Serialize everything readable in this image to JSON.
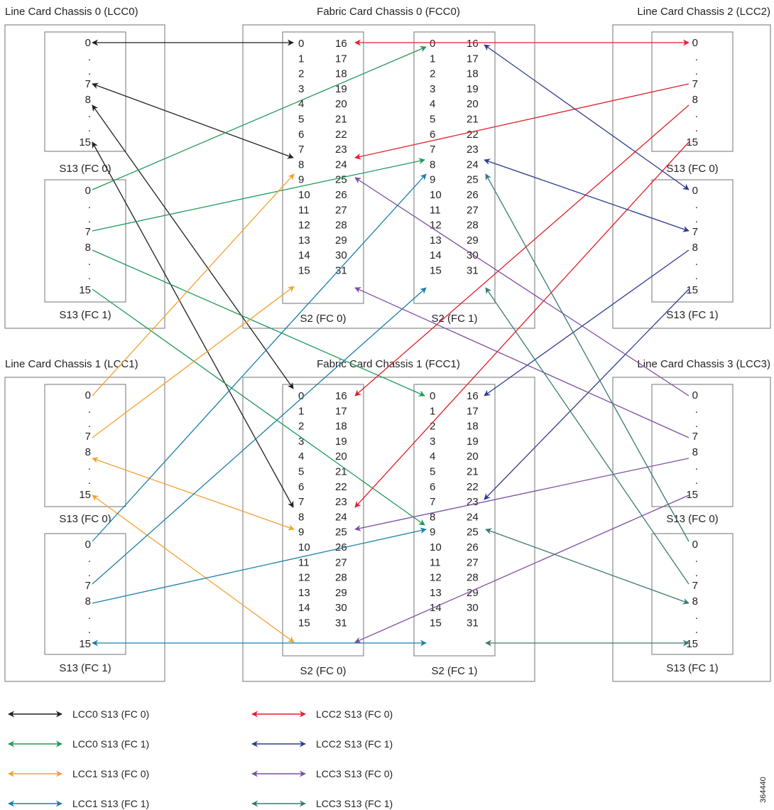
{
  "titles": {
    "lcc0": "Line Card Chassis 0 (LCC0)",
    "fcc0": "Fabric Card Chassis 0 (FCC0)",
    "lcc2": "Line Card Chassis 2 (LCC2)",
    "lcc1": "Line Card Chassis 1 (LCC1)",
    "fcc1": "Fabric Card Chassis 1 (FCC1)",
    "lcc3": "Line Card Chassis 3 (LCC3)"
  },
  "lc_labels": {
    "fc0": "S13 (FC 0)",
    "fc1": "S13 (FC 1)"
  },
  "fabric_labels": {
    "fc0": "S2 (FC 0)",
    "fc1": "S2 (FC 1)"
  },
  "lc_ports": [
    "0",
    ".",
    ".",
    "7",
    "8",
    ".",
    ".",
    "15"
  ],
  "fabric_left": [
    "0",
    "1",
    "2",
    "3",
    "4",
    "5",
    "6",
    "7",
    "8",
    "9",
    "10",
    "11",
    "12",
    "13",
    "14",
    "15"
  ],
  "fabric_right": [
    "16",
    "17",
    "18",
    "19",
    "20",
    "21",
    "22",
    "23",
    "24",
    "25",
    "26",
    "27",
    "28",
    "29",
    "30",
    "31"
  ],
  "colors": {
    "black": "#231f20",
    "green": "#1f9a57",
    "orange": "#f2a12f",
    "blue": "#1a7fa8",
    "red": "#e0202b",
    "navy": "#2e3d8f",
    "purple": "#7b4fa3",
    "teal": "#3a7a72"
  },
  "legend": [
    {
      "label": "LCC0  S13 (FC 0)",
      "color": "#231f20"
    },
    {
      "label": "LCC0  S13 (FC 1)",
      "color": "#1f9a57"
    },
    {
      "label": "LCC1  S13 (FC 0)",
      "color": "#f2a12f"
    },
    {
      "label": "LCC1  S13 (FC 1)",
      "color": "#1a7fa8"
    },
    {
      "label": "LCC2  S13 (FC 0)",
      "color": "#e0202b"
    },
    {
      "label": "LCC2  S13 (FC 1)",
      "color": "#2e3d8f"
    },
    {
      "label": "LCC3  S13 (FC 0)",
      "color": "#7b4fa3"
    },
    {
      "label": "LCC3  S13 (FC 1)",
      "color": "#3a7a72"
    }
  ],
  "figure_id": "364440"
}
